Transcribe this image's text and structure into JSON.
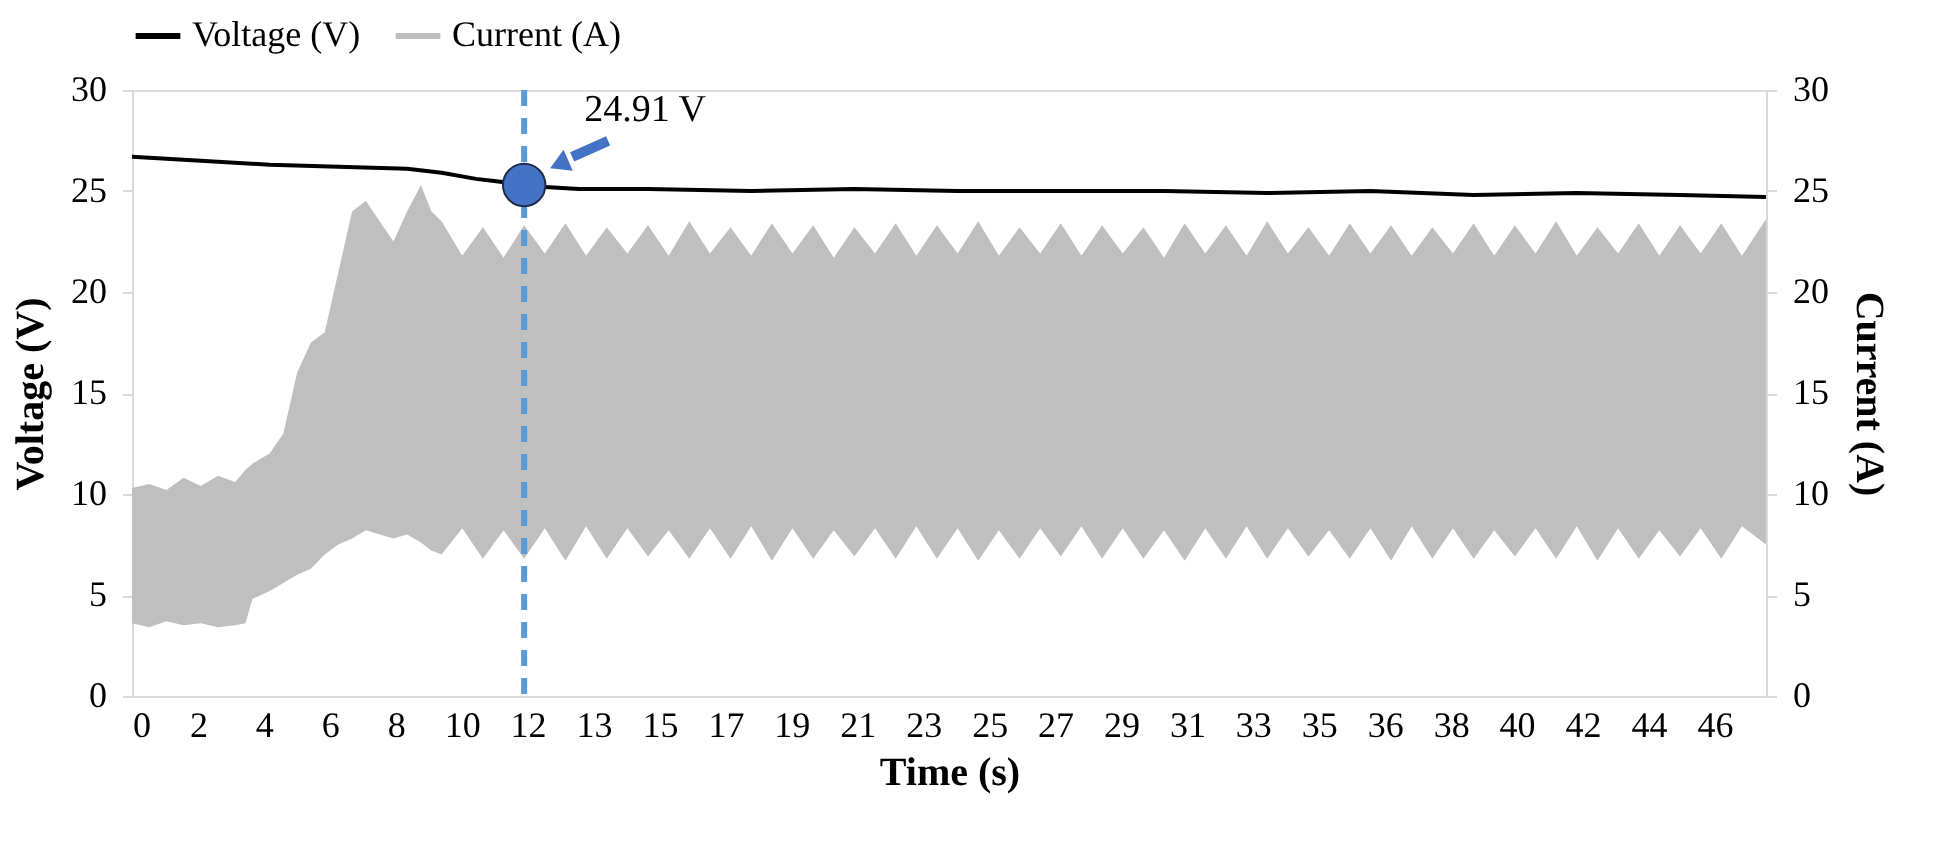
{
  "chart_data": {
    "type": "line",
    "xlabel": "Time (s)",
    "ylabel": "Voltage (V)",
    "y2label": "Current (A)",
    "xlim": [
      0,
      47.5
    ],
    "ylim": [
      0,
      30
    ],
    "y2lim": [
      0,
      30
    ],
    "xticks": [
      0,
      {
        "value": 1.917,
        "label": "2"
      },
      {
        "value": 3.833,
        "label": "4"
      },
      {
        "value": 5.75,
        "label": "6"
      },
      {
        "value": 7.667,
        "label": "8"
      },
      {
        "value": 9.583,
        "label": "10"
      },
      {
        "value": 11.5,
        "label": "12"
      },
      {
        "value": 13.417,
        "label": "13"
      },
      {
        "value": 15.333,
        "label": "15"
      },
      {
        "value": 17.25,
        "label": "17"
      },
      {
        "value": 19.167,
        "label": "19"
      },
      {
        "value": 21.083,
        "label": "21"
      },
      23,
      {
        "value": 24.917,
        "label": "25"
      },
      {
        "value": 26.833,
        "label": "27"
      },
      {
        "value": 28.75,
        "label": "29"
      },
      {
        "value": 30.667,
        "label": "31"
      },
      {
        "value": 32.583,
        "label": "33"
      },
      {
        "value": 34.5,
        "label": "35"
      },
      {
        "value": 36.417,
        "label": "36"
      },
      {
        "value": 38.333,
        "label": "38"
      },
      {
        "value": 40.25,
        "label": "40"
      },
      {
        "value": 42.167,
        "label": "42"
      },
      {
        "value": 44.083,
        "label": "44"
      },
      46
    ],
    "yticks": [
      0,
      5,
      10,
      15,
      20,
      25,
      30
    ],
    "y2ticks": [
      0,
      5,
      10,
      15,
      20,
      25,
      30
    ],
    "legend": "top",
    "marker": "none",
    "line_style": "solid",
    "series": [
      {
        "name": "Voltage (V)",
        "color": "#000000",
        "x": [
          0,
          2,
          4,
          6,
          8,
          9,
          10,
          11,
          11.4,
          12,
          13,
          15,
          18,
          21,
          24,
          27,
          30,
          33,
          36,
          39,
          42,
          45,
          47.5
        ],
        "values": [
          26.7,
          26.5,
          26.3,
          26.2,
          26.1,
          25.9,
          25.6,
          25.4,
          25.3,
          25.2,
          25.1,
          25.1,
          25.0,
          25.1,
          25.0,
          25.0,
          25.0,
          24.9,
          25.0,
          24.8,
          24.9,
          24.8,
          24.7
        ]
      },
      {
        "name": "Current (A)",
        "type": "area",
        "axis": "y2",
        "color": "#bfbfbf",
        "x": [
          0,
          0.5,
          1,
          1.5,
          2,
          2.5,
          3,
          3.3,
          3.5,
          4,
          4.4,
          4.8,
          5.2,
          5.6,
          6,
          6.4,
          6.8,
          7.2,
          7.6,
          8,
          8.4,
          8.7,
          9.0,
          9.6,
          10.2,
          10.8,
          11.4,
          12.0,
          12.6,
          13.2,
          13.8,
          14.4,
          15.0,
          15.6,
          16.2,
          16.8,
          17.4,
          18.0,
          18.6,
          19.2,
          19.8,
          20.4,
          21.0,
          21.6,
          22.2,
          22.8,
          23.4,
          24.0,
          24.6,
          25.2,
          25.8,
          26.4,
          27.0,
          27.6,
          28.2,
          28.8,
          29.4,
          30.0,
          30.6,
          31.2,
          31.8,
          32.4,
          33.0,
          33.6,
          34.2,
          34.8,
          35.4,
          36.0,
          36.6,
          37.2,
          37.8,
          38.4,
          39.0,
          39.6,
          40.2,
          40.8,
          41.4,
          42.0,
          42.6,
          43.2,
          43.8,
          44.4,
          45.0,
          45.6,
          46.2,
          46.8,
          47.5
        ],
        "values": [
          null,
          null,
          null,
          null,
          null,
          null,
          null,
          null,
          null,
          null,
          null,
          null,
          null,
          null,
          null,
          null,
          null,
          null,
          null,
          null,
          null,
          null,
          null,
          null,
          null,
          null,
          null,
          null,
          null,
          null,
          null,
          null,
          null,
          null,
          null,
          null,
          null,
          null,
          null,
          null,
          null,
          null,
          null,
          null,
          null,
          null,
          null,
          null,
          null,
          null,
          null,
          null,
          null,
          null,
          null,
          null,
          null,
          null,
          null,
          null,
          null,
          null,
          null,
          null,
          null,
          null,
          null,
          null,
          null,
          null,
          null,
          null,
          null,
          null,
          null,
          null,
          null,
          null,
          null,
          null,
          null,
          null,
          null,
          null,
          null,
          null,
          null
        ],
        "upper": [
          10.3,
          10.5,
          10.2,
          10.8,
          10.4,
          10.9,
          10.6,
          11.2,
          11.5,
          12.0,
          13.0,
          16.0,
          17.5,
          18.0,
          21.0,
          24.0,
          24.5,
          23.5,
          22.5,
          24.0,
          25.3,
          24.0,
          23.5,
          21.8,
          23.2,
          21.7,
          23.3,
          21.9,
          23.4,
          21.8,
          23.2,
          21.9,
          23.3,
          21.8,
          23.5,
          21.9,
          23.2,
          21.8,
          23.4,
          21.9,
          23.3,
          21.7,
          23.2,
          21.9,
          23.4,
          21.8,
          23.3,
          21.9,
          23.5,
          21.8,
          23.2,
          21.9,
          23.4,
          21.8,
          23.3,
          21.9,
          23.2,
          21.7,
          23.4,
          21.9,
          23.3,
          21.8,
          23.5,
          21.9,
          23.2,
          21.8,
          23.4,
          21.9,
          23.3,
          21.8,
          23.2,
          21.9,
          23.4,
          21.8,
          23.3,
          21.9,
          23.5,
          21.8,
          23.2,
          21.9,
          23.4,
          21.8,
          23.3,
          21.9,
          23.4,
          21.8,
          23.6
        ],
        "lower": [
          3.6,
          3.4,
          3.7,
          3.5,
          3.6,
          3.4,
          3.5,
          3.6,
          4.8,
          5.2,
          5.6,
          6.0,
          6.3,
          7.0,
          7.5,
          7.8,
          8.2,
          8.0,
          7.8,
          8.0,
          7.6,
          7.2,
          7.0,
          8.3,
          6.8,
          8.2,
          6.8,
          8.3,
          6.7,
          8.4,
          6.8,
          8.3,
          6.9,
          8.2,
          6.8,
          8.3,
          6.8,
          8.4,
          6.7,
          8.3,
          6.8,
          8.2,
          6.9,
          8.3,
          6.8,
          8.4,
          6.8,
          8.3,
          6.7,
          8.2,
          6.8,
          8.3,
          6.9,
          8.4,
          6.8,
          8.3,
          6.8,
          8.2,
          6.7,
          8.3,
          6.8,
          8.4,
          6.8,
          8.3,
          6.9,
          8.2,
          6.8,
          8.3,
          6.7,
          8.4,
          6.8,
          8.3,
          6.8,
          8.2,
          6.9,
          8.3,
          6.8,
          8.4,
          6.7,
          8.3,
          6.8,
          8.2,
          6.9,
          8.3,
          6.8,
          8.4,
          7.5
        ]
      }
    ],
    "ref_lines": [
      {
        "axis": "x",
        "value": 11.4,
        "color": "#5b9bd5",
        "line_style": "dashed"
      }
    ],
    "annotations": [
      {
        "text": "24.91 V",
        "x": 11.4,
        "y": 25.3
      }
    ]
  }
}
